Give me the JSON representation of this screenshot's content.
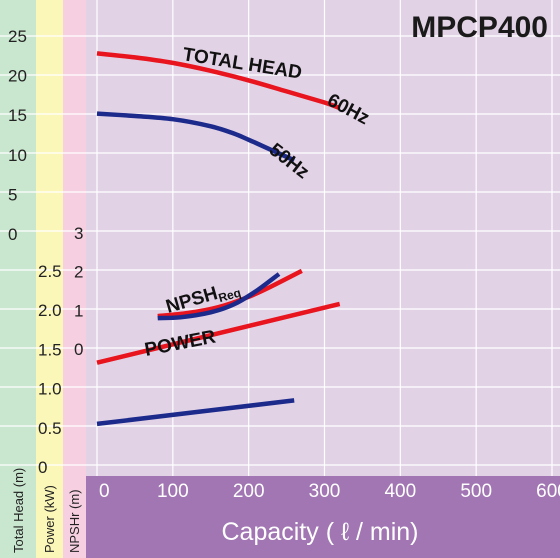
{
  "chart_data": {
    "type": "line",
    "title": "MPCP400",
    "xlabel": "Capacity ( ℓ / min)",
    "x_ticks": [
      "0",
      "100",
      "200",
      "300",
      "400",
      "500",
      "600"
    ],
    "xlim": [
      0,
      600
    ],
    "axes": {
      "head": {
        "label": "Total Head (m)",
        "ticks": [
          "0",
          "5",
          "10",
          "15",
          "20",
          "25"
        ],
        "range": [
          0,
          25
        ]
      },
      "power": {
        "label": "Power (kW)",
        "ticks": [
          "0",
          "0.5",
          "1.0",
          "1.5",
          "2.0",
          "2.5"
        ],
        "range": [
          0,
          2.5
        ]
      },
      "npsh": {
        "label": "NPSHr (m)",
        "ticks": [
          "0",
          "1",
          "2",
          "3"
        ],
        "range": [
          0,
          3
        ]
      }
    },
    "curve_labels": {
      "total_head": "TOTAL HEAD",
      "hz60": "60Hz",
      "hz50": "50Hz",
      "npsh_main": "NPSH",
      "npsh_sub": "Req",
      "power": "POWER"
    },
    "colors": {
      "hz60": "#e8141e",
      "hz50": "#1c2a8c",
      "plot_bg": "#e2d2e6",
      "head_band": "#c9e6cf",
      "power_band": "#fbf7b8",
      "npsh_band": "#f6cfe0",
      "axis_bar": "#a176b3"
    },
    "series": [
      {
        "key": "head60",
        "axis": "head",
        "color": "hz60",
        "x": [
          0,
          50,
          100,
          150,
          200,
          250,
          300,
          320
        ],
        "y": [
          22.8,
          22.3,
          21.6,
          20.6,
          19.4,
          18.0,
          16.6,
          15.9
        ]
      },
      {
        "key": "head50",
        "axis": "head",
        "color": "hz50",
        "x": [
          0,
          50,
          100,
          150,
          180,
          200,
          230,
          260
        ],
        "y": [
          15.2,
          14.9,
          14.5,
          13.6,
          12.7,
          11.9,
          10.6,
          9.3
        ]
      },
      {
        "key": "power60",
        "axis": "power",
        "color": "hz60",
        "x": [
          0,
          320
        ],
        "y": [
          1.33,
          2.08
        ]
      },
      {
        "key": "power50",
        "axis": "power",
        "color": "hz50",
        "x": [
          0,
          260
        ],
        "y": [
          0.55,
          0.85
        ]
      },
      {
        "key": "npsh60",
        "axis": "npsh",
        "color": "hz60",
        "x": [
          80,
          120,
          160,
          200,
          230,
          270
        ],
        "y": [
          0.85,
          0.93,
          1.08,
          1.35,
          1.62,
          2.02
        ]
      },
      {
        "key": "npsh50",
        "axis": "npsh",
        "color": "hz50",
        "x": [
          80,
          110,
          150,
          180,
          210,
          240
        ],
        "y": [
          0.8,
          0.82,
          0.95,
          1.15,
          1.5,
          1.94
        ]
      }
    ]
  }
}
